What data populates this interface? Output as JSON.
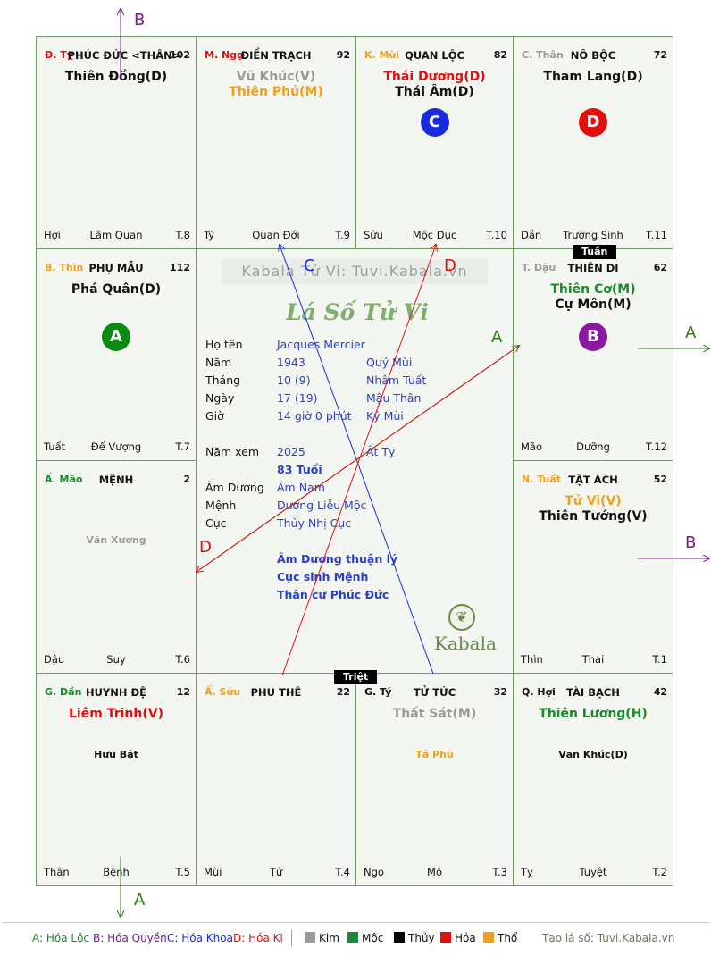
{
  "cells": {
    "ty": {
      "can": "Đ. Tỵ",
      "name": "PHÚC ĐỨC <THÂN>",
      "num": "102",
      "stars": [
        "Thiên Đồng(D)"
      ],
      "bl": "Hợi",
      "bm": "Lâm Quan",
      "br": "T.8"
    },
    "ngo": {
      "can": "M. Ngọ",
      "name": "ĐIỀN TRẠCH",
      "num": "92",
      "stars": [
        "Vũ Khúc(V)",
        "Thiên Phủ(M)"
      ],
      "bl": "Tý",
      "bm": "Quan Đới",
      "br": "T.9"
    },
    "mui": {
      "can": "K. Mùi",
      "name": "QUAN LỘC",
      "num": "82",
      "stars": [
        "Thái Dương(D)",
        "Thái Âm(D)"
      ],
      "circle": "C",
      "bl": "Sửu",
      "bm": "Mộc Dục",
      "br": "T.10"
    },
    "than": {
      "can": "C. Thân",
      "name": "NÔ BỘC",
      "num": "72",
      "stars": [
        "Tham Lang(D)"
      ],
      "circle": "D",
      "bl": "Dần",
      "bm": "Trường Sinh",
      "br": "T.11"
    },
    "thin": {
      "can": "B. Thìn",
      "name": "PHỤ MẪU",
      "num": "112",
      "stars": [
        "Phá Quân(D)"
      ],
      "circle": "A",
      "bl": "Tuất",
      "bm": "Đế Vượng",
      "br": "T.7"
    },
    "dau": {
      "can": "T. Dậu",
      "name": "THIÊN DI",
      "num": "62",
      "stars": [
        "Thiên Cơ(M)",
        "Cự Môn(M)"
      ],
      "circle": "B",
      "bl": "Mão",
      "bm": "Dưỡng",
      "br": "T.12"
    },
    "mao": {
      "can": "Ấ. Mão",
      "name": "MỆNH",
      "num": "2",
      "minor": "Văn Xương",
      "bl": "Dậu",
      "bm": "Suy",
      "br": "T.6"
    },
    "tuat": {
      "can": "N. Tuất",
      "name": "TẬT ÁCH",
      "num": "52",
      "stars": [
        "Tử Vi(V)",
        "Thiên Tướng(V)"
      ],
      "bl": "Thìn",
      "bm": "Thai",
      "br": "T.1"
    },
    "dan": {
      "can": "G. Dần",
      "name": "HUYNH ĐỆ",
      "num": "12",
      "stars": [
        "Liêm Trinh(V)"
      ],
      "minor": "Hữu Bật",
      "bl": "Thân",
      "bm": "Bệnh",
      "br": "T.5"
    },
    "suu": {
      "can": "Ấ. Sửu",
      "name": "PHU THÊ",
      "num": "22",
      "bl": "Mùi",
      "bm": "Tử",
      "br": "T.4"
    },
    "ty2": {
      "can": "G. Tý",
      "name": "TỬ TỨC",
      "num": "32",
      "stars": [
        "Thất Sát(M)"
      ],
      "minor": "Tả Phù",
      "bl": "Ngọ",
      "bm": "Mộ",
      "br": "T.3"
    },
    "hoi": {
      "can": "Q. Hợi",
      "name": "TÀI BẠCH",
      "num": "42",
      "stars": [
        "Thiên Lương(H)"
      ],
      "minor": "Văn Khúc(D)",
      "bl": "Tỵ",
      "bm": "Tuyệt",
      "br": "T.2"
    }
  },
  "tags": {
    "tuan": "Tuần",
    "triet": "Triệt"
  },
  "center": {
    "watermark": "Kabala Tử Vi: Tuvi.Kabala.vn",
    "title": "Lá Số Tử Vi",
    "labels": {
      "hoten": "Họ tên",
      "nam": "Năm",
      "thang": "Tháng",
      "ngay": "Ngày",
      "gio": "Giờ",
      "namxem": "Năm xem",
      "amduong": "Âm Dương",
      "menh": "Mệnh",
      "cuc": "Cục"
    },
    "values": {
      "hoten": "Jacques Mercier",
      "nam": "1943",
      "nam_cc": "Quý Mùi",
      "thang": "10  (9)",
      "thang_cc": "Nhâm Tuất",
      "ngay": "17  (19)",
      "ngay_cc": "Mậu Thân",
      "gio": "14 giờ 0 phút",
      "gio_cc": "Kỷ Mùi",
      "namxem": "2025",
      "namxem_cc": "Ất Tỵ",
      "tuoi": "83 Tuổi",
      "amduong": "Âm Nam",
      "menh": "Dương Liễu Mộc",
      "cuc": "Thủy Nhị Cục"
    },
    "notes": [
      "Âm Dương thuận lý",
      "Cục sinh Mệnh",
      "Thân cư Phúc Đức"
    ],
    "logo": "Kabala"
  },
  "arrow_labels": {
    "b_top": "B",
    "c": "C",
    "d_center": "D",
    "a_center": "A",
    "a_right": "A",
    "d_left": "D",
    "b_right": "B",
    "a_bottom": "A"
  },
  "legend": {
    "a": "A: Hóa Lộc",
    "b": "B: Hóa Quyền",
    "c": "C: Hóa Khoa",
    "d": "D: Hóa Kị",
    "kim": "Kim",
    "moc": "Mộc",
    "thuy": "Thủy",
    "hoa": "Hỏa",
    "tho": "Thổ",
    "site": "Tạo lá số: Tuvi.Kabala.vn"
  },
  "colors": {
    "grid": "#6e9a5b",
    "red": "#e01010",
    "orange": "#f0a020",
    "green": "#1a8a2a",
    "blue": "#2a3fc9",
    "purple": "#7a1a8a",
    "gray": "#9a9a9a"
  }
}
